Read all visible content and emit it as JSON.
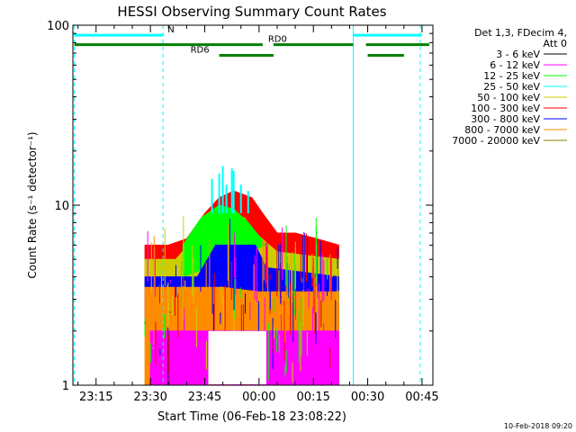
{
  "chart_data": {
    "type": "line",
    "title": "HESSI Observing Summary Count Rates",
    "xlabel": "Start Time (06-Feb-18 23:08:22)",
    "ylabel": "Count Rate (s⁻¹ detector⁻¹)",
    "scale_y": "log",
    "ylim": [
      1,
      100
    ],
    "xlim_minutes_after_2315": [
      -6.4,
      93
    ],
    "x_ticks": [
      "23:15",
      "23:30",
      "23:45",
      "00:00",
      "00:15",
      "00:30",
      "00:45"
    ],
    "y_ticks": [
      "1",
      "10",
      "100"
    ],
    "legend_header": [
      "Det 1,3, FDecim 4,",
      "Att 0"
    ],
    "legend_placement": "right",
    "series": [
      {
        "name": "3 - 6 keV",
        "color": "#000000"
      },
      {
        "name": "6 - 12 keV",
        "color": "#ff00ff"
      },
      {
        "name": "12 - 25 keV",
        "color": "#00ff00"
      },
      {
        "name": "25 - 50 keV",
        "color": "#00ffff"
      },
      {
        "name": "50 - 100 keV",
        "color": "#cccc00"
      },
      {
        "name": "100 - 300 keV",
        "color": "#ff0000"
      },
      {
        "name": "300 - 800 keV",
        "color": "#0000ff"
      },
      {
        "name": "800 - 7000 keV",
        "color": "#ff8c00"
      },
      {
        "name": "7000 - 20000 keV",
        "color": "#808000"
      }
    ],
    "data_interval": {
      "start": "23:28",
      "end": "00:27"
    },
    "envelopes": [
      {
        "color": "#ff0000",
        "points": [
          [
            13.5,
            6
          ],
          [
            20,
            6
          ],
          [
            25,
            6.5
          ],
          [
            30,
            9
          ],
          [
            34,
            11
          ],
          [
            38,
            12
          ],
          [
            43,
            11
          ],
          [
            46,
            9
          ],
          [
            50,
            7
          ],
          [
            55,
            7
          ],
          [
            61,
            6.5
          ],
          [
            67,
            6
          ],
          [
            67,
            4
          ],
          [
            13.5,
            4
          ]
        ]
      },
      {
        "color": "#cccc00",
        "points": [
          [
            13.5,
            5
          ],
          [
            22,
            5
          ],
          [
            27,
            6.5
          ],
          [
            31,
            8
          ],
          [
            36,
            9
          ],
          [
            41,
            8.5
          ],
          [
            44,
            7
          ],
          [
            50,
            5.5
          ],
          [
            67,
            5
          ],
          [
            67,
            3
          ],
          [
            13.5,
            3
          ]
        ]
      },
      {
        "color": "#00ff00",
        "points": [
          [
            24,
            6
          ],
          [
            29,
            8.5
          ],
          [
            34,
            10
          ],
          [
            38,
            9.5
          ],
          [
            42,
            8
          ],
          [
            47,
            6
          ],
          [
            24,
            4
          ]
        ]
      },
      {
        "color": "#0000ff",
        "points": [
          [
            13.5,
            4
          ],
          [
            28,
            4
          ],
          [
            33,
            6
          ],
          [
            37,
            6
          ],
          [
            44,
            6
          ],
          [
            47,
            4.5
          ],
          [
            67,
            4
          ],
          [
            67,
            2
          ],
          [
            13.5,
            2
          ]
        ]
      },
      {
        "color": "#ff8c00",
        "points": [
          [
            13.5,
            3.5
          ],
          [
            35,
            3.5
          ],
          [
            45,
            3.3
          ],
          [
            67,
            3.3
          ],
          [
            67,
            1
          ],
          [
            13.5,
            1
          ]
        ]
      },
      {
        "color": "#ff00ff",
        "points": [
          [
            15,
            2
          ],
          [
            25,
            2
          ],
          [
            32,
            2
          ],
          [
            42,
            2
          ],
          [
            60,
            2
          ],
          [
            67,
            2
          ],
          [
            67,
            1
          ],
          [
            15,
            1
          ]
        ]
      }
    ],
    "cyan_spikes": [
      [
        32,
        14
      ],
      [
        34,
        15
      ],
      [
        35,
        16.5
      ],
      [
        36,
        13
      ],
      [
        38,
        15.5
      ],
      [
        40,
        13
      ],
      [
        42,
        12
      ],
      [
        37.5,
        16
      ]
    ],
    "annotations": [
      {
        "label": "N",
        "color": "#00ffff",
        "segments": [
          [
            -6,
            18.5
          ],
          [
            71,
            90
          ]
        ],
        "y": 88
      },
      {
        "label": "RD0",
        "color": "#008000",
        "segments": [
          [
            -6,
            46
          ],
          [
            49,
            71
          ],
          [
            74.5,
            92
          ]
        ],
        "y": 78
      },
      {
        "label": "RD6",
        "color": "#008000",
        "segments": [
          [
            34,
            49
          ],
          [
            75,
            85
          ]
        ],
        "y": 68
      }
    ],
    "vlines": [
      {
        "x": -6,
        "color": "#00ffff",
        "style": "dashed"
      },
      {
        "x": 18.5,
        "color": "#00ffff",
        "style": "dashed"
      },
      {
        "x": 71,
        "color": "#00ffff",
        "style": "solid"
      },
      {
        "x": 89.5,
        "color": "#00ffff",
        "style": "dashed"
      }
    ]
  },
  "footer": {
    "timestamp": "10-Feb-2018 09:20"
  }
}
